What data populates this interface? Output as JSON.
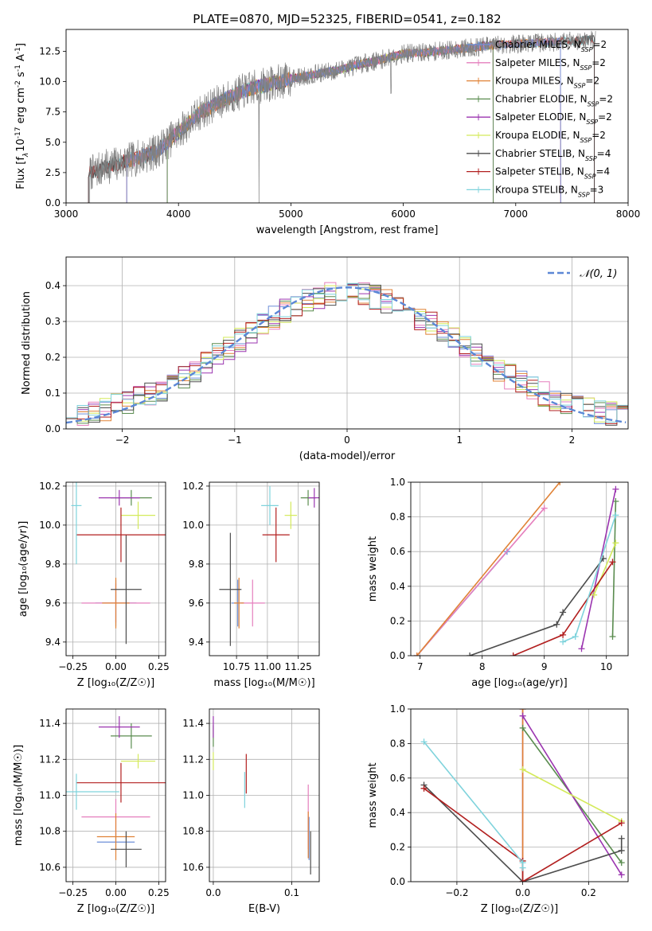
{
  "figure_title": "PLATE=0870, MJD=52325, FIBERID=0541, z=0.182",
  "colors": {
    "Chabrier MILES": "#6e8fd8",
    "Salpeter MILES": "#e57fbd",
    "Kroupa MILES": "#e08236",
    "Chabrier ELODIE": "#5a8c4f",
    "Salpeter ELODIE": "#9b35b0",
    "Kroupa ELODIE": "#d4ea5a",
    "Chabrier STELIB": "#4d4d4d",
    "Salpeter STELIB": "#b21f1f",
    "Kroupa STELIB": "#7fd3dc",
    "normal": "#5b87d6",
    "spectrum": "#808080"
  },
  "chart_data": [
    {
      "type": "line",
      "panel": "spectrum",
      "title": "PLATE=0870, MJD=52325, FIBERID=0541, z=0.182",
      "xlabel": "wavelength [Angstrom, rest frame]",
      "ylabel_parts": [
        "Flux [f",
        "λ",
        "10",
        "-17",
        " erg cm",
        "-2",
        " s",
        "-1",
        " A",
        "-1",
        "]"
      ],
      "xlim": [
        3000,
        8000
      ],
      "ylim": [
        0,
        14.3
      ],
      "xticks": [
        3000,
        4000,
        5000,
        6000,
        7000,
        8000
      ],
      "yticks": [
        "0.0",
        "2.5",
        "5.0",
        "7.5",
        "10.0",
        "12.5"
      ],
      "ytick_values": [
        0,
        2.5,
        5,
        7.5,
        10,
        12.5
      ],
      "legend": [
        {
          "name": "Chabrier MILES",
          "nssp": "2"
        },
        {
          "name": "Salpeter MILES",
          "nssp": "2"
        },
        {
          "name": "Kroupa MILES",
          "nssp": "2"
        },
        {
          "name": "Chabrier ELODIE",
          "nssp": "2"
        },
        {
          "name": "Salpeter ELODIE",
          "nssp": "2"
        },
        {
          "name": "Kroupa ELODIE",
          "nssp": "2"
        },
        {
          "name": "Chabrier STELIB",
          "nssp": "4"
        },
        {
          "name": "Salpeter STELIB",
          "nssp": "4"
        },
        {
          "name": "Kroupa STELIB",
          "nssp": "3"
        }
      ],
      "nssp_prefix": ", N",
      "nssp_sub": "SSP",
      "nssp_eq": "=",
      "continuum": [
        [
          3200,
          2.4
        ],
        [
          3400,
          3.1
        ],
        [
          3600,
          3.6
        ],
        [
          3800,
          4.2
        ],
        [
          4000,
          5.8
        ],
        [
          4200,
          7.5
        ],
        [
          4400,
          8.5
        ],
        [
          4600,
          9.3
        ],
        [
          4800,
          9.8
        ],
        [
          5000,
          10.2
        ],
        [
          5200,
          10.6
        ],
        [
          5400,
          10.9
        ],
        [
          5600,
          11.4
        ],
        [
          5800,
          11.8
        ],
        [
          6000,
          12.3
        ],
        [
          6200,
          12.4
        ],
        [
          6400,
          12.6
        ],
        [
          6600,
          12.8
        ],
        [
          6800,
          13.0
        ],
        [
          7000,
          13.1
        ],
        [
          7200,
          13.2
        ],
        [
          7400,
          13.3
        ],
        [
          7600,
          13.4
        ],
        [
          7700,
          13.5
        ]
      ]
    },
    {
      "type": "line",
      "panel": "residual histogram",
      "xlabel": "(data-model)/error",
      "ylabel": "Normed distribution",
      "xlim": [
        -2.5,
        2.5
      ],
      "ylim": [
        0,
        0.48
      ],
      "xticks": [
        "−2",
        "−1",
        "0",
        "1",
        "2"
      ],
      "xtick_values": [
        -2,
        -1,
        0,
        1,
        2
      ],
      "yticks": [
        "0.0",
        "0.1",
        "0.2",
        "0.3",
        "0.4"
      ],
      "ytick_values": [
        0,
        0.1,
        0.2,
        0.3,
        0.4
      ],
      "legend": "𝒩(0, 1)",
      "normal_mean": 0,
      "normal_sigma": 1,
      "bin_width": 0.1
    },
    {
      "type": "scatter",
      "panel": "age vs Z",
      "xlabel": "Z [log₁₀(Z/Z☉)]",
      "ylabel": "age  [log₁₀(age/yr)]",
      "xlim": [
        -0.29,
        0.29
      ],
      "ylim": [
        9.33,
        10.22
      ],
      "xticks": [
        "−0.25",
        "0.00",
        "0.25"
      ],
      "xtick_values": [
        -0.25,
        0,
        0.25
      ],
      "yticks": [
        "9.4",
        "9.6",
        "9.8",
        "10.0",
        "10.2"
      ],
      "ytick_values": [
        9.4,
        9.6,
        9.8,
        10.0,
        10.2
      ],
      "points": [
        {
          "model": "Chabrier MILES",
          "x": 0.0,
          "y": 9.6,
          "xerr": 0.12,
          "yerr": 0.12
        },
        {
          "model": "Salpeter MILES",
          "x": 0.0,
          "y": 9.6,
          "xerr": 0.2,
          "yerr": 0.1
        },
        {
          "model": "Kroupa MILES",
          "x": 0.0,
          "y": 9.6,
          "xerr": 0.08,
          "yerr": 0.13
        },
        {
          "model": "Chabrier ELODIE",
          "x": 0.09,
          "y": 10.14,
          "xerr": 0.12,
          "yerr": 0.04
        },
        {
          "model": "Salpeter ELODIE",
          "x": 0.02,
          "y": 10.14,
          "xerr": 0.12,
          "yerr": 0.04
        },
        {
          "model": "Kroupa ELODIE",
          "x": 0.13,
          "y": 10.05,
          "xerr": 0.1,
          "yerr": 0.07
        },
        {
          "model": "Chabrier STELIB",
          "x": 0.06,
          "y": 9.67,
          "xerr": 0.09,
          "yerr": 0.28
        },
        {
          "model": "Salpeter STELIB",
          "x": 0.03,
          "y": 9.95,
          "xerr": 0.26,
          "yerr": 0.14
        },
        {
          "model": "Kroupa STELIB",
          "x": -0.23,
          "y": 10.1,
          "xerr": 0.03,
          "yerr": 0.3
        }
      ]
    },
    {
      "type": "scatter",
      "panel": "age vs mass",
      "xlabel": "mass [log₁₀(M/M☉)]",
      "ylabel": "",
      "xlim": [
        10.53,
        11.42
      ],
      "ylim": [
        9.33,
        10.22
      ],
      "xticks": [
        "10.75",
        "11.00",
        "11.25"
      ],
      "xtick_values": [
        10.75,
        11.0,
        11.25
      ],
      "yticks": [
        "9.4",
        "9.6",
        "9.8",
        "10.0",
        "10.2"
      ],
      "ytick_values": [
        9.4,
        9.6,
        9.8,
        10.0,
        10.2
      ],
      "points": [
        {
          "model": "Chabrier MILES",
          "x": 10.76,
          "y": 9.6,
          "xerr": 0.05,
          "yerr": 0.12
        },
        {
          "model": "Salpeter MILES",
          "x": 10.88,
          "y": 9.6,
          "xerr": 0.1,
          "yerr": 0.12
        },
        {
          "model": "Kroupa MILES",
          "x": 10.77,
          "y": 9.6,
          "xerr": 0.04,
          "yerr": 0.13
        },
        {
          "model": "Chabrier ELODIE",
          "x": 11.33,
          "y": 10.14,
          "xerr": 0.06,
          "yerr": 0.04
        },
        {
          "model": "Salpeter ELODIE",
          "x": 11.38,
          "y": 10.14,
          "xerr": 0.05,
          "yerr": 0.05
        },
        {
          "model": "Kroupa ELODIE",
          "x": 11.19,
          "y": 10.05,
          "xerr": 0.05,
          "yerr": 0.07
        },
        {
          "model": "Chabrier STELIB",
          "x": 10.7,
          "y": 9.67,
          "xerr": 0.09,
          "yerr": 0.29
        },
        {
          "model": "Salpeter STELIB",
          "x": 11.07,
          "y": 9.95,
          "xerr": 0.11,
          "yerr": 0.14
        },
        {
          "model": "Kroupa STELIB",
          "x": 11.02,
          "y": 10.1,
          "xerr": 0.07,
          "yerr": 0.1
        }
      ]
    },
    {
      "type": "line",
      "panel": "mass weight vs age",
      "xlabel": "age  [log₁₀(age/yr)]",
      "ylabel": "mass weight",
      "xlim": [
        6.85,
        10.35
      ],
      "ylim": [
        0,
        1
      ],
      "xticks": [
        "7",
        "8",
        "9",
        "10"
      ],
      "xtick_values": [
        7,
        8,
        9,
        10
      ],
      "yticks": [
        "0.0",
        "0.2",
        "0.4",
        "0.6",
        "0.8",
        "1.0"
      ],
      "ytick_values": [
        0,
        0.2,
        0.4,
        0.6,
        0.8,
        1.0
      ],
      "series": [
        {
          "model": "Chabrier MILES",
          "points": [
            [
              6.95,
              0.0
            ],
            [
              8.4,
              0.6
            ]
          ]
        },
        {
          "model": "Salpeter MILES",
          "points": [
            [
              6.95,
              0.0
            ],
            [
              9.0,
              0.85
            ]
          ]
        },
        {
          "model": "Kroupa MILES",
          "points": [
            [
              6.95,
              0.0
            ],
            [
              9.25,
              1.0
            ]
          ]
        },
        {
          "model": "Chabrier ELODIE",
          "points": [
            [
              10.1,
              0.11
            ],
            [
              10.15,
              0.89
            ]
          ]
        },
        {
          "model": "Salpeter ELODIE",
          "points": [
            [
              9.6,
              0.04
            ],
            [
              10.15,
              0.96
            ]
          ]
        },
        {
          "model": "Kroupa ELODIE",
          "points": [
            [
              9.8,
              0.35
            ],
            [
              10.15,
              0.65
            ]
          ]
        },
        {
          "model": "Chabrier STELIB",
          "points": [
            [
              7.8,
              0.0
            ],
            [
              9.2,
              0.18
            ],
            [
              9.3,
              0.25
            ],
            [
              9.95,
              0.56
            ]
          ]
        },
        {
          "model": "Salpeter STELIB",
          "points": [
            [
              8.5,
              0.0
            ],
            [
              9.3,
              0.12
            ],
            [
              10.1,
              0.54
            ]
          ]
        },
        {
          "model": "Kroupa STELIB",
          "points": [
            [
              9.3,
              0.08
            ],
            [
              9.5,
              0.11
            ],
            [
              10.15,
              0.81
            ]
          ]
        }
      ]
    },
    {
      "type": "scatter",
      "panel": "mass vs Z",
      "xlabel": "Z [log₁₀(Z/Z☉)]",
      "ylabel": "mass [log₁₀(M/M☉)]",
      "xlim": [
        -0.29,
        0.29
      ],
      "ylim": [
        10.52,
        11.48
      ],
      "xticks": [
        "−0.25",
        "0.00",
        "0.25"
      ],
      "xtick_values": [
        -0.25,
        0,
        0.25
      ],
      "yticks": [
        "10.6",
        "10.8",
        "11.0",
        "11.2",
        "11.4"
      ],
      "ytick_values": [
        10.6,
        10.8,
        11.0,
        11.2,
        11.4
      ],
      "points": [
        {
          "model": "Chabrier MILES",
          "x": 0.0,
          "y": 10.74,
          "xerr": 0.11,
          "yerr": 0.05
        },
        {
          "model": "Salpeter MILES",
          "x": 0.0,
          "y": 10.88,
          "xerr": 0.2,
          "yerr": 0.1
        },
        {
          "model": "Kroupa MILES",
          "x": 0.0,
          "y": 10.77,
          "xerr": 0.11,
          "yerr": 0.13
        },
        {
          "model": "Chabrier ELODIE",
          "x": 0.09,
          "y": 11.33,
          "xerr": 0.12,
          "yerr": 0.07
        },
        {
          "model": "Salpeter ELODIE",
          "x": 0.02,
          "y": 11.38,
          "xerr": 0.12,
          "yerr": 0.06
        },
        {
          "model": "Kroupa ELODIE",
          "x": 0.13,
          "y": 11.19,
          "xerr": 0.1,
          "yerr": 0.04
        },
        {
          "model": "Chabrier STELIB",
          "x": 0.06,
          "y": 10.7,
          "xerr": 0.09,
          "yerr": 0.1
        },
        {
          "model": "Salpeter STELIB",
          "x": 0.03,
          "y": 11.07,
          "xerr": 0.26,
          "yerr": 0.11
        },
        {
          "model": "Kroupa STELIB",
          "x": -0.23,
          "y": 11.02,
          "xerr": 0.25,
          "yerr": 0.1
        }
      ]
    },
    {
      "type": "scatter",
      "panel": "mass vs E(B-V)",
      "xlabel": "E(B-V)",
      "ylabel": "",
      "xlim": [
        -0.005,
        0.135
      ],
      "ylim": [
        10.52,
        11.48
      ],
      "xticks": [
        "0.0",
        "0.1"
      ],
      "xtick_values": [
        0,
        0.1
      ],
      "yticks": [
        "10.6",
        "10.8",
        "11.0",
        "11.2",
        "11.4"
      ],
      "ytick_values": [
        10.6,
        10.8,
        11.0,
        11.2,
        11.4
      ],
      "points": [
        {
          "model": "Chabrier MILES",
          "x": 0.122,
          "y": 10.76,
          "yerr": 0.12
        },
        {
          "model": "Salpeter MILES",
          "x": 0.121,
          "y": 10.88,
          "yerr": 0.18
        },
        {
          "model": "Kroupa MILES",
          "x": 0.121,
          "y": 10.78,
          "yerr": 0.13
        },
        {
          "model": "Chabrier ELODIE",
          "x": 0.0,
          "y": 11.33,
          "yerr": 0.06
        },
        {
          "model": "Salpeter ELODIE",
          "x": 0.0,
          "y": 11.38,
          "yerr": 0.06
        },
        {
          "model": "Kroupa ELODIE",
          "x": 0.0,
          "y": 11.19,
          "yerr": 0.05
        },
        {
          "model": "Chabrier STELIB",
          "x": 0.124,
          "y": 10.68,
          "yerr": 0.12
        },
        {
          "model": "Salpeter STELIB",
          "x": 0.042,
          "y": 11.12,
          "yerr": 0.11
        },
        {
          "model": "Kroupa STELIB",
          "x": 0.04,
          "y": 11.03,
          "yerr": 0.1
        }
      ]
    },
    {
      "type": "line",
      "panel": "mass weight vs Z",
      "xlabel": "Z [log₁₀(Z/Z☉)]",
      "ylabel": "mass weight",
      "xlim": [
        -0.34,
        0.32
      ],
      "ylim": [
        0,
        1
      ],
      "xticks": [
        "−0.2",
        "0.0",
        "0.2"
      ],
      "xtick_values": [
        -0.2,
        0,
        0.2
      ],
      "yticks": [
        "0.0",
        "0.2",
        "0.4",
        "0.6",
        "0.8",
        "1.0"
      ],
      "ytick_values": [
        0,
        0.2,
        0.4,
        0.6,
        0.8,
        1.0
      ],
      "series": [
        {
          "model": "Chabrier MILES",
          "points": [
            [
              0.0,
              0.0
            ],
            [
              0.0,
              1.0
            ]
          ]
        },
        {
          "model": "Salpeter MILES",
          "points": [
            [
              0.0,
              0.0
            ],
            [
              0.0,
              1.0
            ]
          ]
        },
        {
          "model": "Kroupa MILES",
          "points": [
            [
              0.0,
              0.0
            ],
            [
              0.0,
              1.0
            ]
          ]
        },
        {
          "model": "Chabrier ELODIE",
          "points": [
            [
              0.0,
              0.89
            ],
            [
              0.3,
              0.11
            ]
          ]
        },
        {
          "model": "Salpeter ELODIE",
          "points": [
            [
              0.0,
              0.96
            ],
            [
              0.3,
              0.04
            ]
          ]
        },
        {
          "model": "Kroupa ELODIE",
          "points": [
            [
              0.0,
              0.65
            ],
            [
              0.3,
              0.35
            ]
          ]
        },
        {
          "model": "Chabrier STELIB",
          "points": [
            [
              -0.3,
              0.56
            ],
            [
              0.0,
              0.0
            ],
            [
              0.3,
              0.18
            ],
            [
              0.3,
              0.25
            ]
          ]
        },
        {
          "model": "Salpeter STELIB",
          "points": [
            [
              -0.3,
              0.54
            ],
            [
              0.0,
              0.12
            ],
            [
              0.0,
              0.0
            ],
            [
              0.3,
              0.34
            ]
          ]
        },
        {
          "model": "Kroupa STELIB",
          "points": [
            [
              -0.3,
              0.81
            ],
            [
              0.0,
              0.11
            ],
            [
              0.0,
              0.08
            ]
          ]
        }
      ]
    }
  ]
}
